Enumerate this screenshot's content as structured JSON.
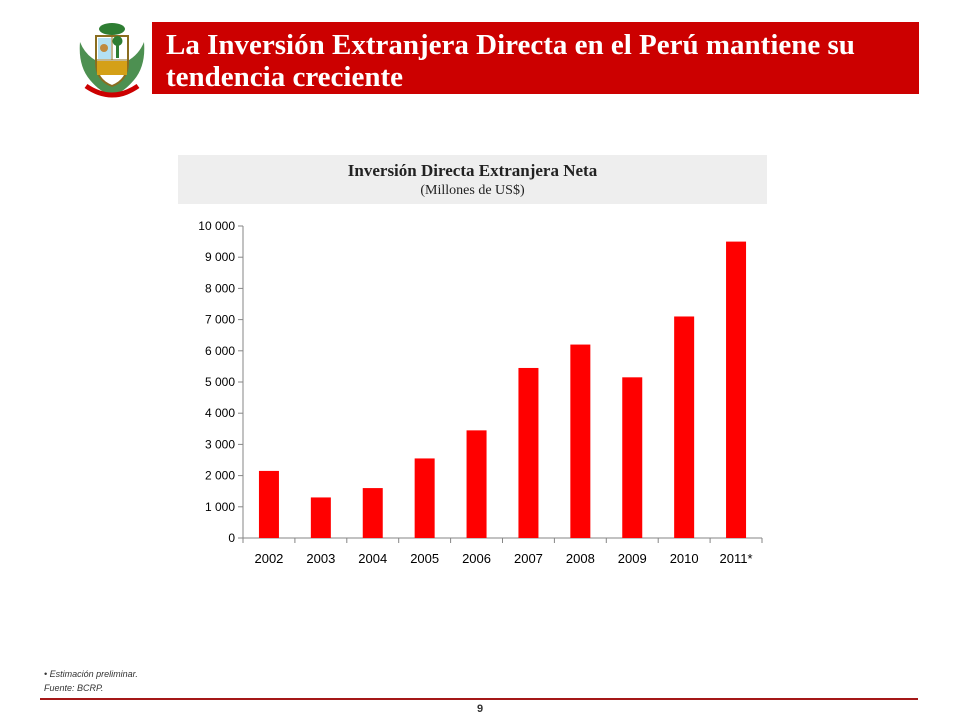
{
  "slide": {
    "title": "La Inversión Extranjera Directa en el Perú mantiene su tendencia creciente",
    "emblem": "peru-coat-of-arms",
    "footnote": "• Estimación preliminar.",
    "source": "Fuente: BCRP.",
    "page_number": "9",
    "accent_color": "#cc0000"
  },
  "chart_data": {
    "type": "bar",
    "title": "Inversión Directa Extranjera Neta",
    "subtitle": "(Millones de US$)",
    "categories": [
      "2002",
      "2003",
      "2004",
      "2005",
      "2006",
      "2007",
      "2008",
      "2009",
      "2010",
      "2011*"
    ],
    "values": [
      2150,
      1300,
      1600,
      2550,
      3450,
      5450,
      6200,
      5150,
      7100,
      9500
    ],
    "ylim": [
      0,
      10000
    ],
    "yticks": [
      0,
      1000,
      2000,
      3000,
      4000,
      5000,
      6000,
      7000,
      8000,
      9000,
      10000
    ],
    "ytick_labels": [
      "0",
      "1 000",
      "2 000",
      "3 000",
      "4 000",
      "5 000",
      "6 000",
      "7 000",
      "8 000",
      "9 000",
      "10 000"
    ],
    "grid": false,
    "legend": "none",
    "bar_color": "#ff0000"
  }
}
